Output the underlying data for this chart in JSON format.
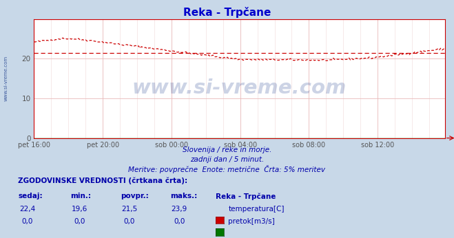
{
  "title": "Reka - Trpčane",
  "title_color": "#0000cc",
  "bg_color": "#c8d8e8",
  "plot_bg_color": "#ffffff",
  "grid_color_major": "#e8b8b8",
  "grid_color_minor": "#f0d8d8",
  "x_tick_labels": [
    "pet 16:00",
    "pet 20:00",
    "sob 00:00",
    "sob 04:00",
    "sob 08:00",
    "sob 12:00"
  ],
  "x_tick_positions": [
    0,
    48,
    96,
    144,
    192,
    240
  ],
  "y_ticks": [
    0,
    10,
    20
  ],
  "ylim": [
    0,
    30
  ],
  "xlim": [
    0,
    287
  ],
  "temp_color": "#cc0000",
  "flow_color": "#007700",
  "avg_line_color": "#cc0000",
  "avg_value": 21.5,
  "subtitle1": "Slovenija / reke in morje.",
  "subtitle2": "zadnji dan / 5 minut.",
  "subtitle3": "Meritve: povprečne  Enote: metrične  Črta: 5% meritev",
  "subtitle_color": "#0000aa",
  "table_header": "ZGODOVINSKE VREDNOSTI (črtkana črta):",
  "table_col_labels": [
    "sedaj:",
    "min.:",
    "povpr.:",
    "maks.:"
  ],
  "table_vals_temp": [
    "22,4",
    "19,6",
    "21,5",
    "23,9"
  ],
  "table_vals_flow": [
    "0,0",
    "0,0",
    "0,0",
    "0,0"
  ],
  "legend_label_temp": "temperatura[C]",
  "legend_label_flow": "pretok[m3/s]",
  "station_label": "Reka - Trpčane",
  "watermark": "www.si-vreme.com",
  "watermark_color": "#1a3a8a",
  "left_label": "www.si-vreme.com",
  "left_label_color": "#1a3a8a",
  "axis_color": "#cc0000",
  "tick_color": "#555555"
}
